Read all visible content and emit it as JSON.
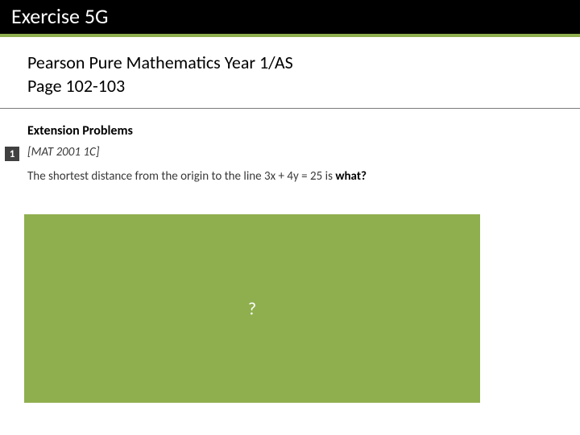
{
  "slide": {
    "title": "Exercise 5G",
    "reference": {
      "line1": "Pearson Pure Mathematics Year 1/AS",
      "line2": "Page 102-103"
    },
    "extension_heading": "Extension Problems",
    "problems": [
      {
        "number": "1",
        "source": "[MAT 2001 1C]",
        "question_prefix": "The shortest distance from the origin to the line ",
        "equation": "3x + 4y = 25",
        "question_mid": " is ",
        "question_suffix": "what?"
      }
    ],
    "answer_placeholder": "?"
  },
  "colors": {
    "title_bg": "#000000",
    "accent": "#8faf4f",
    "badge": "#404040",
    "text": "#000000",
    "muted": "#3a3a3a",
    "white": "#ffffff"
  }
}
